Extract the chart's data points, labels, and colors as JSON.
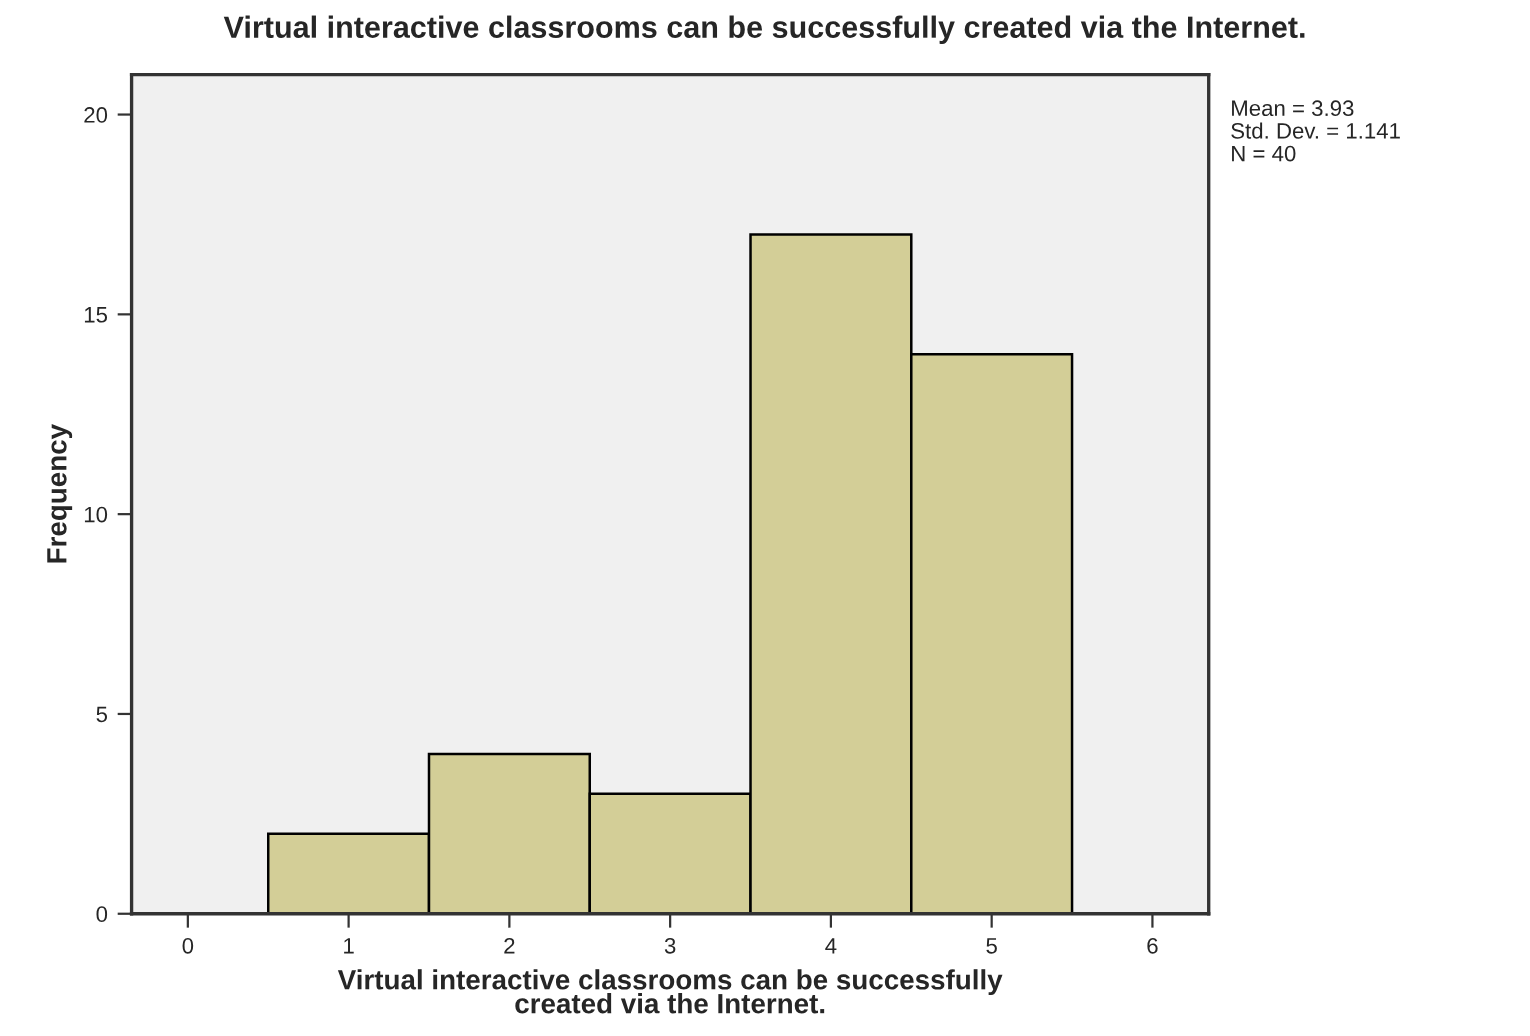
{
  "chart_data": {
    "type": "histogram",
    "title": "Virtual interactive classrooms can be successfully created via the Internet.",
    "xlabel": "Virtual interactive classrooms can be successfully\ncreated via the Internet.",
    "ylabel": "Frequency",
    "bins": [
      0.5,
      1.5,
      2.5,
      3.5,
      4.5,
      5.5
    ],
    "values": [
      2,
      4,
      3,
      17,
      14
    ],
    "color": "#d3ce97",
    "xlim": [
      -0.35,
      6.35
    ],
    "xticks": [
      0,
      1,
      2,
      3,
      4,
      5,
      6
    ],
    "ylim": [
      0,
      21
    ],
    "yticks": [
      0,
      5,
      10,
      15,
      20
    ],
    "grid": false,
    "legend": false,
    "annotations": [
      "Mean = 3.93",
      "Std. Dev. = 1.141",
      "N = 40"
    ]
  }
}
